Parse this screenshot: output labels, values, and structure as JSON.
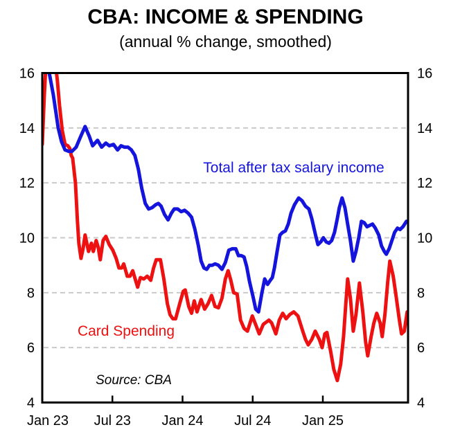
{
  "header": {
    "title": "CBA: INCOME & SPENDING",
    "subtitle": "(annual % change, smoothed)"
  },
  "annotations": {
    "income_label": "Total after tax salary income",
    "spending_label": "Card Spending",
    "source": "Source: CBA"
  },
  "colors": {
    "income_line": "#1414dd",
    "spending_line": "#ee1111",
    "gridline": "#c9c9c9",
    "axis": "#000000",
    "background": "#ffffff"
  },
  "chart_data": {
    "type": "line",
    "title": "CBA: INCOME & SPENDING",
    "subtitle": "(annual % change, smoothed)",
    "xlabel": "",
    "ylabel": "annual % change",
    "x_unit": "months since Jan 2023",
    "x_tick_labels": [
      "Jan 23",
      "Jul 23",
      "Jan 24",
      "Jul 24",
      "Jan 25"
    ],
    "x_tick_months": [
      0,
      6,
      12,
      18,
      24
    ],
    "x_range_months": [
      0,
      31.3
    ],
    "ylim": [
      4,
      16
    ],
    "y_ticks": [
      4,
      6,
      8,
      10,
      12,
      14,
      16
    ],
    "grid_y": [
      6,
      8,
      10,
      12,
      14
    ],
    "grid_style": "dashed horizontal",
    "legend_position": "inline text annotations on lines",
    "series": [
      {
        "name": "Total after tax salary income",
        "color": "#1414dd",
        "points": [
          [
            0,
            17.0
          ],
          [
            0.47,
            16.3
          ],
          [
            0.95,
            15.2
          ],
          [
            1.36,
            14.0
          ],
          [
            1.65,
            13.5
          ],
          [
            1.95,
            13.2
          ],
          [
            2.25,
            13.15
          ],
          [
            2.54,
            13.15
          ],
          [
            2.9,
            13.3
          ],
          [
            3.25,
            13.65
          ],
          [
            3.66,
            14.05
          ],
          [
            4.02,
            13.7
          ],
          [
            4.31,
            13.35
          ],
          [
            4.73,
            13.55
          ],
          [
            5.08,
            13.3
          ],
          [
            5.44,
            13.45
          ],
          [
            5.73,
            13.35
          ],
          [
            6.09,
            13.4
          ],
          [
            6.44,
            13.2
          ],
          [
            6.74,
            13.35
          ],
          [
            7.03,
            13.3
          ],
          [
            7.33,
            13.3
          ],
          [
            7.62,
            13.2
          ],
          [
            7.92,
            13.0
          ],
          [
            8.22,
            12.5
          ],
          [
            8.51,
            11.8
          ],
          [
            8.81,
            11.25
          ],
          [
            9.1,
            11.05
          ],
          [
            9.4,
            11.1
          ],
          [
            9.69,
            11.2
          ],
          [
            9.93,
            11.25
          ],
          [
            10.17,
            11.15
          ],
          [
            10.46,
            10.85
          ],
          [
            10.76,
            10.65
          ],
          [
            11.05,
            10.9
          ],
          [
            11.29,
            11.05
          ],
          [
            11.58,
            11.05
          ],
          [
            11.88,
            10.95
          ],
          [
            12.17,
            11.0
          ],
          [
            12.47,
            10.9
          ],
          [
            12.77,
            10.75
          ],
          [
            13.06,
            10.3
          ],
          [
            13.36,
            9.7
          ],
          [
            13.59,
            9.15
          ],
          [
            13.83,
            8.9
          ],
          [
            14.07,
            8.85
          ],
          [
            14.3,
            9.0
          ],
          [
            14.54,
            9.0
          ],
          [
            14.78,
            9.05
          ],
          [
            15.07,
            9.0
          ],
          [
            15.37,
            8.85
          ],
          [
            15.66,
            9.1
          ],
          [
            15.96,
            9.55
          ],
          [
            16.25,
            9.6
          ],
          [
            16.55,
            9.6
          ],
          [
            16.78,
            9.35
          ],
          [
            17.02,
            9.35
          ],
          [
            17.26,
            9.3
          ],
          [
            17.49,
            8.95
          ],
          [
            17.73,
            8.4
          ],
          [
            18.03,
            7.85
          ],
          [
            18.26,
            7.4
          ],
          [
            18.5,
            7.3
          ],
          [
            18.79,
            8.0
          ],
          [
            19.03,
            8.5
          ],
          [
            19.27,
            8.3
          ],
          [
            19.5,
            8.45
          ],
          [
            19.68,
            8.55
          ],
          [
            19.86,
            8.9
          ],
          [
            20.09,
            9.5
          ],
          [
            20.33,
            10.1
          ],
          [
            20.57,
            10.2
          ],
          [
            20.8,
            10.25
          ],
          [
            21.04,
            10.5
          ],
          [
            21.28,
            10.9
          ],
          [
            21.57,
            11.2
          ],
          [
            21.93,
            11.45
          ],
          [
            22.22,
            11.35
          ],
          [
            22.52,
            11.15
          ],
          [
            22.81,
            11.05
          ],
          [
            23.05,
            10.7
          ],
          [
            23.35,
            10.15
          ],
          [
            23.58,
            9.75
          ],
          [
            23.82,
            9.85
          ],
          [
            24.05,
            10.0
          ],
          [
            24.29,
            9.85
          ],
          [
            24.53,
            9.8
          ],
          [
            24.76,
            9.9
          ],
          [
            25.0,
            10.2
          ],
          [
            25.24,
            10.7
          ],
          [
            25.41,
            11.1
          ],
          [
            25.65,
            11.45
          ],
          [
            25.89,
            11.1
          ],
          [
            26.12,
            10.5
          ],
          [
            26.36,
            9.9
          ],
          [
            26.6,
            9.15
          ],
          [
            26.83,
            9.5
          ],
          [
            27.07,
            10.0
          ],
          [
            27.3,
            10.6
          ],
          [
            27.54,
            10.55
          ],
          [
            27.78,
            10.4
          ],
          [
            28.01,
            10.45
          ],
          [
            28.25,
            10.5
          ],
          [
            28.49,
            10.35
          ],
          [
            28.78,
            10.1
          ],
          [
            29.02,
            9.7
          ],
          [
            29.26,
            9.5
          ],
          [
            29.43,
            9.4
          ],
          [
            29.67,
            9.6
          ],
          [
            29.91,
            9.9
          ],
          [
            30.14,
            10.2
          ],
          [
            30.38,
            10.35
          ],
          [
            30.61,
            10.3
          ],
          [
            30.85,
            10.4
          ],
          [
            31.15,
            10.6
          ]
        ]
      },
      {
        "name": "Card Spending",
        "color": "#ee1111",
        "points": [
          [
            0,
            13.4
          ],
          [
            0.18,
            15.2
          ],
          [
            0.35,
            16.6
          ],
          [
            0.71,
            17.0
          ],
          [
            1.06,
            16.6
          ],
          [
            1.3,
            15.7
          ],
          [
            1.48,
            14.8
          ],
          [
            1.71,
            13.9
          ],
          [
            1.95,
            13.4
          ],
          [
            2.19,
            13.35
          ],
          [
            2.36,
            13.25
          ],
          [
            2.48,
            13.0
          ],
          [
            2.6,
            12.9
          ],
          [
            2.84,
            12.0
          ],
          [
            3.01,
            10.6
          ],
          [
            3.13,
            9.8
          ],
          [
            3.31,
            9.25
          ],
          [
            3.49,
            9.6
          ],
          [
            3.66,
            10.1
          ],
          [
            3.96,
            9.5
          ],
          [
            4.2,
            9.8
          ],
          [
            4.37,
            9.5
          ],
          [
            4.61,
            9.9
          ],
          [
            4.79,
            9.65
          ],
          [
            4.96,
            9.2
          ],
          [
            5.2,
            9.9
          ],
          [
            5.44,
            10.05
          ],
          [
            5.73,
            9.75
          ],
          [
            6.03,
            9.55
          ],
          [
            6.32,
            9.25
          ],
          [
            6.56,
            8.9
          ],
          [
            6.8,
            8.9
          ],
          [
            6.97,
            9.05
          ],
          [
            7.27,
            8.6
          ],
          [
            7.51,
            8.6
          ],
          [
            7.74,
            8.8
          ],
          [
            7.98,
            8.45
          ],
          [
            8.16,
            8.2
          ],
          [
            8.39,
            8.55
          ],
          [
            8.69,
            8.5
          ],
          [
            8.98,
            8.6
          ],
          [
            9.28,
            8.45
          ],
          [
            9.52,
            8.9
          ],
          [
            9.75,
            9.2
          ],
          [
            10.11,
            9.2
          ],
          [
            10.4,
            8.5
          ],
          [
            10.7,
            7.6
          ],
          [
            10.93,
            7.2
          ],
          [
            11.17,
            7.05
          ],
          [
            11.41,
            7.05
          ],
          [
            11.76,
            7.6
          ],
          [
            12.06,
            8.05
          ],
          [
            12.23,
            8.1
          ],
          [
            12.53,
            7.5
          ],
          [
            12.77,
            7.25
          ],
          [
            13.0,
            7.7
          ],
          [
            13.24,
            7.3
          ],
          [
            13.59,
            7.75
          ],
          [
            13.89,
            7.4
          ],
          [
            14.18,
            7.6
          ],
          [
            14.48,
            7.9
          ],
          [
            14.78,
            7.5
          ],
          [
            15.07,
            7.45
          ],
          [
            15.37,
            7.8
          ],
          [
            15.66,
            8.5
          ],
          [
            15.9,
            8.8
          ],
          [
            16.13,
            8.45
          ],
          [
            16.37,
            8.0
          ],
          [
            16.67,
            7.95
          ],
          [
            16.96,
            7.0
          ],
          [
            17.26,
            6.7
          ],
          [
            17.55,
            6.6
          ],
          [
            17.97,
            7.15
          ],
          [
            18.2,
            6.9
          ],
          [
            18.56,
            6.5
          ],
          [
            18.91,
            6.85
          ],
          [
            19.39,
            7.0
          ],
          [
            19.62,
            6.9
          ],
          [
            19.98,
            6.5
          ],
          [
            20.27,
            7.0
          ],
          [
            20.57,
            7.25
          ],
          [
            20.86,
            7.05
          ],
          [
            21.16,
            7.2
          ],
          [
            21.51,
            7.3
          ],
          [
            21.87,
            7.15
          ],
          [
            22.28,
            6.6
          ],
          [
            22.52,
            6.3
          ],
          [
            22.75,
            6.1
          ],
          [
            23.05,
            6.3
          ],
          [
            23.35,
            6.6
          ],
          [
            23.7,
            6.3
          ],
          [
            23.94,
            6.0
          ],
          [
            24.17,
            6.5
          ],
          [
            24.35,
            6.55
          ],
          [
            24.65,
            5.9
          ],
          [
            24.94,
            5.2
          ],
          [
            25.24,
            4.8
          ],
          [
            25.53,
            5.4
          ],
          [
            25.77,
            6.4
          ],
          [
            25.95,
            7.5
          ],
          [
            26.12,
            8.5
          ],
          [
            26.36,
            7.8
          ],
          [
            26.6,
            6.6
          ],
          [
            26.83,
            7.2
          ],
          [
            27.13,
            8.35
          ],
          [
            27.42,
            7.3
          ],
          [
            27.66,
            6.2
          ],
          [
            27.84,
            5.7
          ],
          [
            28.13,
            6.4
          ],
          [
            28.37,
            6.9
          ],
          [
            28.61,
            7.25
          ],
          [
            28.9,
            6.9
          ],
          [
            29.08,
            6.4
          ],
          [
            29.31,
            7.2
          ],
          [
            29.55,
            8.4
          ],
          [
            29.73,
            9.15
          ],
          [
            30.02,
            8.6
          ],
          [
            30.26,
            7.9
          ],
          [
            30.55,
            7.0
          ],
          [
            30.73,
            6.5
          ],
          [
            30.97,
            6.6
          ],
          [
            31.21,
            7.3
          ]
        ]
      }
    ]
  }
}
